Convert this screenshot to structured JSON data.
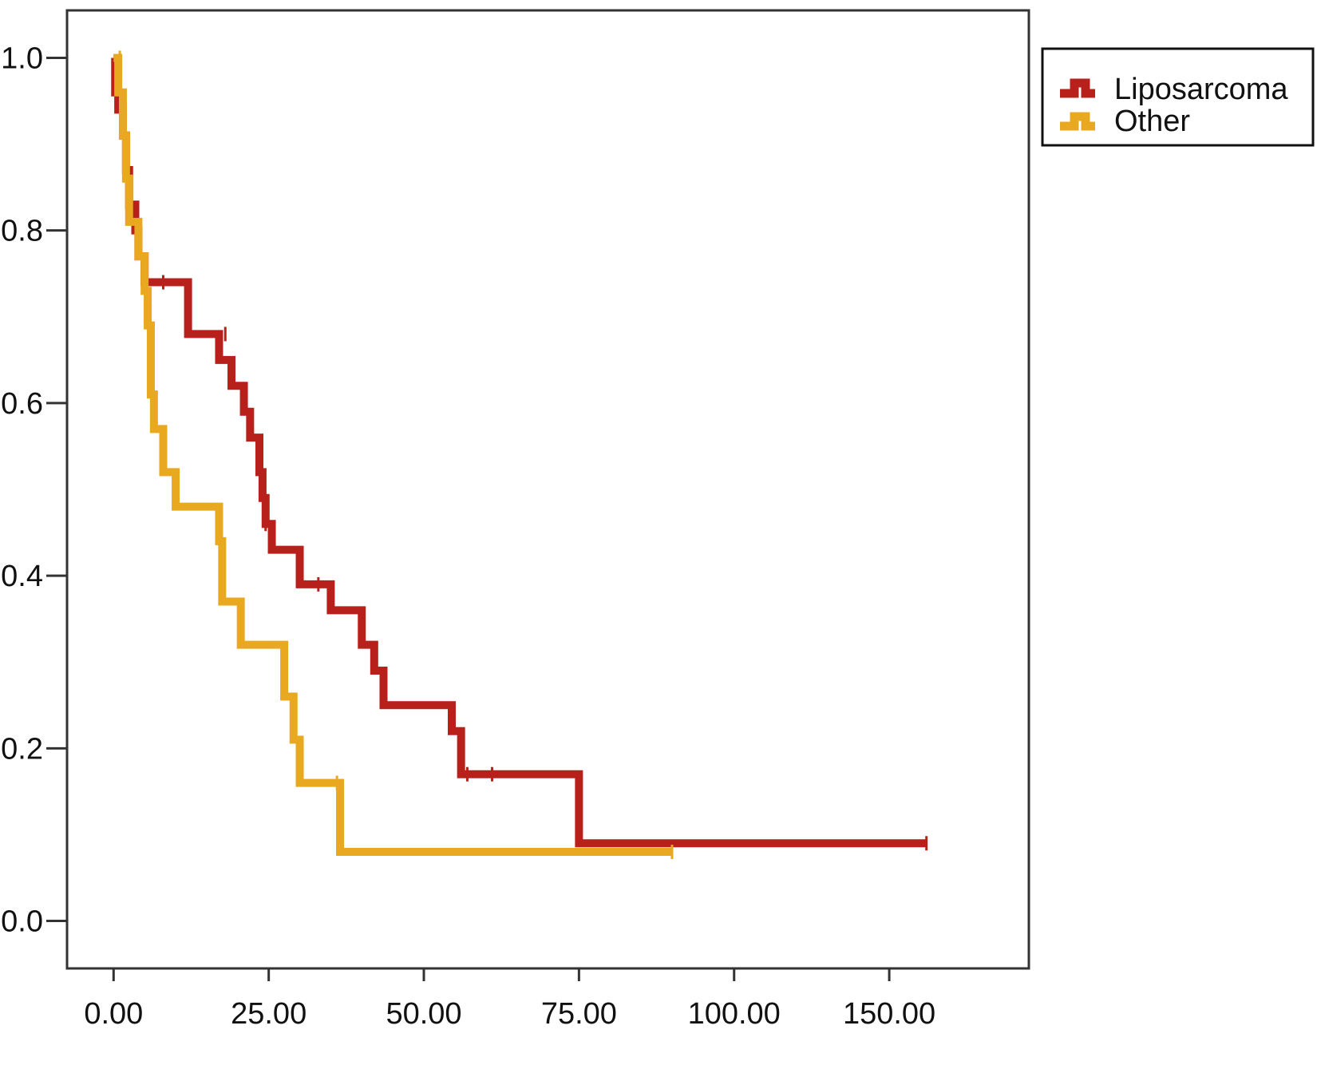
{
  "chart_data": {
    "type": "line",
    "title": "",
    "xlabel": "",
    "ylabel": "",
    "xlim": [
      -15,
      295
    ],
    "ylim": [
      -0.055,
      1.055
    ],
    "x_ticks": [
      {
        "value": 0,
        "label": "0.00"
      },
      {
        "value": 50,
        "label": "25.00"
      },
      {
        "value": 100,
        "label": "50.00"
      },
      {
        "value": 150,
        "label": "75.00"
      },
      {
        "value": 200,
        "label": "100.00"
      },
      {
        "value": 250,
        "label": "150.00"
      }
    ],
    "y_ticks": [
      {
        "value": 0.0,
        "label": "0.0"
      },
      {
        "value": 0.2,
        "label": "0.2"
      },
      {
        "value": 0.4,
        "label": "0.4"
      },
      {
        "value": 0.6,
        "label": "0.6"
      },
      {
        "value": 0.8,
        "label": "0.8"
      },
      {
        "value": 1.0,
        "label": "1.0"
      }
    ],
    "grid": false,
    "legend_position": "top-right, outside plot",
    "series": [
      {
        "name": "Liposarcoma",
        "color": "#b8201c",
        "step": true,
        "points": [
          [
            0,
            1.0
          ],
          [
            0.5,
            0.96
          ],
          [
            1.5,
            0.94
          ],
          [
            3,
            0.91
          ],
          [
            4,
            0.87
          ],
          [
            5,
            0.83
          ],
          [
            7,
            0.8
          ],
          [
            8,
            0.77
          ],
          [
            10,
            0.74
          ],
          [
            24,
            0.68
          ],
          [
            34,
            0.65
          ],
          [
            38,
            0.62
          ],
          [
            42,
            0.59
          ],
          [
            44,
            0.56
          ],
          [
            47,
            0.52
          ],
          [
            48,
            0.49
          ],
          [
            49,
            0.46
          ],
          [
            51,
            0.43
          ],
          [
            60,
            0.39
          ],
          [
            70,
            0.36
          ],
          [
            80,
            0.32
          ],
          [
            84,
            0.29
          ],
          [
            87,
            0.25
          ],
          [
            109,
            0.22
          ],
          [
            112,
            0.17
          ],
          [
            150,
            0.09
          ],
          [
            262,
            0.09
          ]
        ],
        "censored": [
          [
            16,
            0.74
          ],
          [
            36,
            0.68
          ],
          [
            49,
            0.46
          ],
          [
            66,
            0.39
          ],
          [
            114,
            0.17
          ],
          [
            122,
            0.17
          ],
          [
            262,
            0.09
          ]
        ]
      },
      {
        "name": "Other",
        "color": "#e8a820",
        "step": true,
        "points": [
          [
            0,
            1.0
          ],
          [
            1.5,
            0.96
          ],
          [
            3,
            0.91
          ],
          [
            4,
            0.86
          ],
          [
            5,
            0.81
          ],
          [
            8,
            0.77
          ],
          [
            10,
            0.73
          ],
          [
            11,
            0.69
          ],
          [
            12,
            0.61
          ],
          [
            13,
            0.57
          ],
          [
            16,
            0.52
          ],
          [
            20,
            0.48
          ],
          [
            34,
            0.44
          ],
          [
            35,
            0.37
          ],
          [
            41,
            0.32
          ],
          [
            55,
            0.26
          ],
          [
            58,
            0.21
          ],
          [
            60,
            0.16
          ],
          [
            73,
            0.08
          ],
          [
            180,
            0.08
          ]
        ],
        "censored": [
          [
            2,
            1.0
          ],
          [
            72,
            0.16
          ],
          [
            180,
            0.08
          ]
        ]
      }
    ]
  }
}
